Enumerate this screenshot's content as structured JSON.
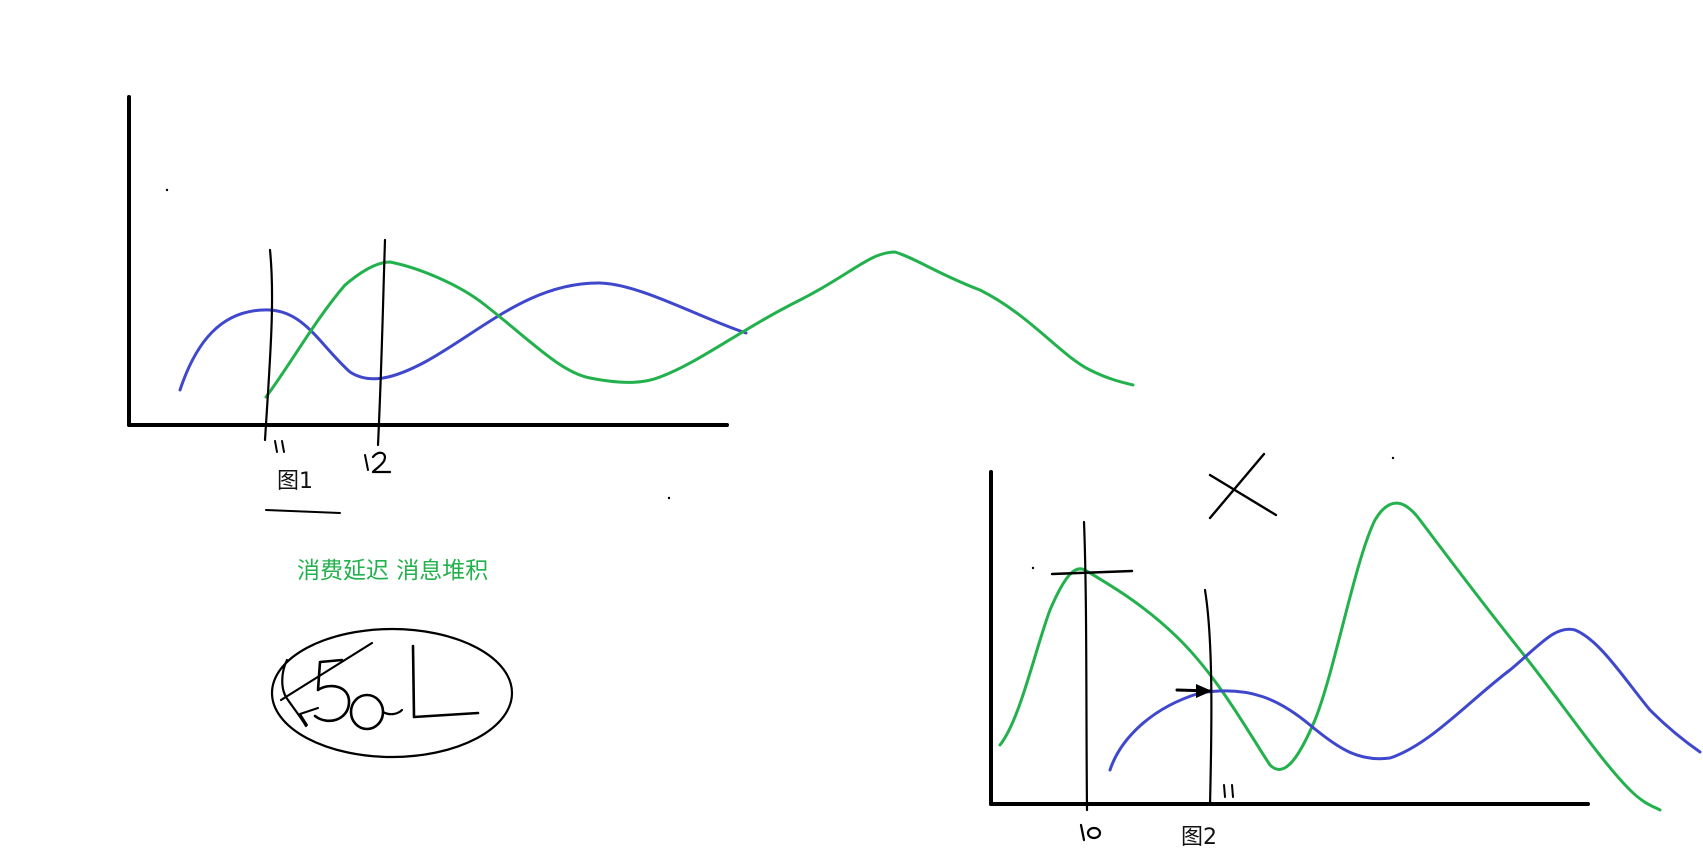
{
  "figure1": {
    "caption": "图1",
    "handwritten_marks": [
      "t1",
      "t2"
    ]
  },
  "figure2": {
    "caption": "图2",
    "handwritten_marks": [
      "t0",
      "t1"
    ],
    "cross_mark": "✗"
  },
  "note": {
    "text": "消费延迟 消息堆积",
    "color": "#22b14c"
  },
  "circled_sketch": {
    "handwritten_text": "50L"
  },
  "colors": {
    "ink": "#000000",
    "blue_line": "#3f48cc",
    "green_line": "#22b14c"
  }
}
